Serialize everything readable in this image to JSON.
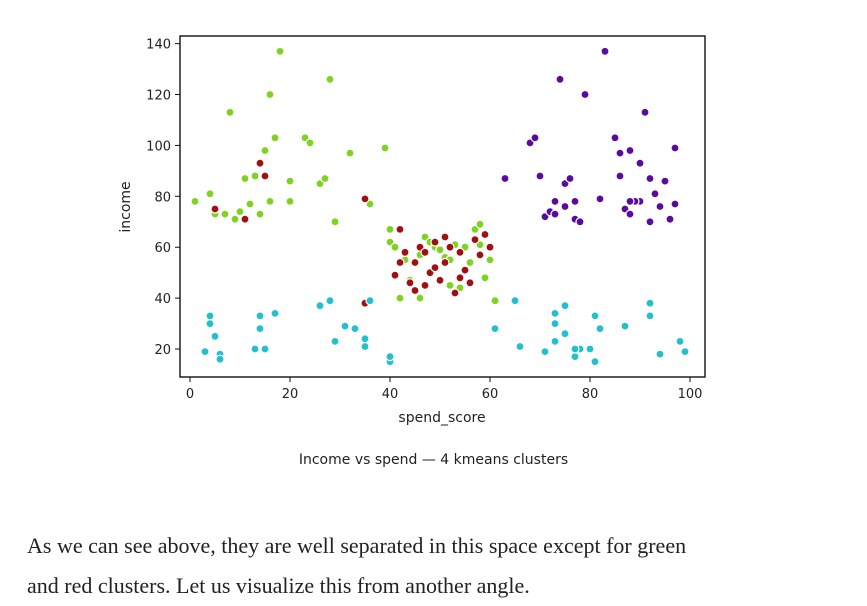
{
  "chart_data": {
    "type": "scatter",
    "xlabel": "spend_score",
    "ylabel": "income",
    "xlim": [
      -2,
      103
    ],
    "ylim": [
      9,
      143
    ],
    "x_ticks": [
      0,
      20,
      40,
      60,
      80,
      100
    ],
    "y_ticks": [
      20,
      40,
      60,
      80,
      100,
      120,
      140
    ],
    "grid": false,
    "legend": "none",
    "series": [
      {
        "color": "#7ed321",
        "points": [
          [
            1,
            78
          ],
          [
            4,
            81
          ],
          [
            5,
            73
          ],
          [
            7,
            73
          ],
          [
            8,
            113
          ],
          [
            9,
            71
          ],
          [
            10,
            74
          ],
          [
            11,
            87
          ],
          [
            12,
            77
          ],
          [
            13,
            88
          ],
          [
            15,
            98
          ],
          [
            16,
            120
          ],
          [
            17,
            103
          ],
          [
            18,
            137
          ],
          [
            20,
            86
          ],
          [
            20,
            78
          ],
          [
            23,
            103
          ],
          [
            24,
            101
          ],
          [
            26,
            85
          ],
          [
            27,
            87
          ],
          [
            28,
            126
          ],
          [
            29,
            70
          ],
          [
            32,
            97
          ],
          [
            36,
            77
          ],
          [
            39,
            99
          ],
          [
            40,
            67
          ],
          [
            40,
            62
          ],
          [
            41,
            60
          ],
          [
            42,
            40
          ],
          [
            43,
            55
          ],
          [
            44,
            47
          ],
          [
            46,
            40
          ],
          [
            46,
            57
          ],
          [
            47,
            64
          ],
          [
            48,
            62
          ],
          [
            49,
            60
          ],
          [
            50,
            59
          ],
          [
            51,
            56
          ],
          [
            52,
            55
          ],
          [
            52,
            45
          ],
          [
            53,
            61
          ],
          [
            54,
            44
          ],
          [
            55,
            60
          ],
          [
            56,
            54
          ],
          [
            57,
            67
          ],
          [
            58,
            61
          ],
          [
            58,
            69
          ],
          [
            59,
            48
          ],
          [
            60,
            55
          ],
          [
            61,
            39
          ],
          [
            16,
            78
          ],
          [
            14,
            73
          ]
        ]
      },
      {
        "color": "#a01010",
        "points": [
          [
            5,
            75
          ],
          [
            11,
            71
          ],
          [
            14,
            93
          ],
          [
            15,
            88
          ],
          [
            35,
            79
          ],
          [
            35,
            38
          ],
          [
            41,
            49
          ],
          [
            42,
            67
          ],
          [
            42,
            54
          ],
          [
            43,
            58
          ],
          [
            44,
            46
          ],
          [
            45,
            43
          ],
          [
            45,
            54
          ],
          [
            46,
            60
          ],
          [
            47,
            58
          ],
          [
            48,
            50
          ],
          [
            49,
            62
          ],
          [
            50,
            47
          ],
          [
            51,
            54
          ],
          [
            51,
            64
          ],
          [
            52,
            60
          ],
          [
            53,
            42
          ],
          [
            54,
            58
          ],
          [
            55,
            51
          ],
          [
            56,
            46
          ],
          [
            57,
            63
          ],
          [
            58,
            57
          ],
          [
            59,
            65
          ],
          [
            60,
            60
          ],
          [
            54,
            48
          ],
          [
            47,
            45
          ],
          [
            49,
            52
          ]
        ]
      },
      {
        "color": "#22bfcc",
        "points": [
          [
            3,
            19
          ],
          [
            4,
            33
          ],
          [
            4,
            30
          ],
          [
            5,
            25
          ],
          [
            6,
            18
          ],
          [
            6,
            16
          ],
          [
            13,
            20
          ],
          [
            14,
            33
          ],
          [
            14,
            28
          ],
          [
            15,
            20
          ],
          [
            17,
            34
          ],
          [
            26,
            37
          ],
          [
            28,
            39
          ],
          [
            29,
            23
          ],
          [
            31,
            29
          ],
          [
            33,
            28
          ],
          [
            35,
            24
          ],
          [
            35,
            21
          ],
          [
            36,
            39
          ],
          [
            40,
            15
          ],
          [
            40,
            17
          ],
          [
            61,
            28
          ],
          [
            65,
            39
          ],
          [
            66,
            21
          ],
          [
            71,
            19
          ],
          [
            73,
            34
          ],
          [
            73,
            30
          ],
          [
            75,
            26
          ],
          [
            75,
            37
          ],
          [
            77,
            17
          ],
          [
            78,
            20
          ],
          [
            80,
            20
          ],
          [
            81,
            15
          ],
          [
            81,
            33
          ],
          [
            82,
            28
          ],
          [
            87,
            29
          ],
          [
            92,
            38
          ],
          [
            92,
            33
          ],
          [
            94,
            18
          ],
          [
            98,
            23
          ],
          [
            99,
            19
          ],
          [
            73,
            23
          ],
          [
            77,
            20
          ]
        ]
      },
      {
        "color": "#5a0a9e",
        "points": [
          [
            63,
            87
          ],
          [
            68,
            101
          ],
          [
            69,
            103
          ],
          [
            70,
            88
          ],
          [
            71,
            72
          ],
          [
            72,
            74
          ],
          [
            73,
            78
          ],
          [
            73,
            73
          ],
          [
            74,
            126
          ],
          [
            75,
            76
          ],
          [
            75,
            85
          ],
          [
            76,
            87
          ],
          [
            77,
            78
          ],
          [
            77,
            71
          ],
          [
            78,
            70
          ],
          [
            79,
            120
          ],
          [
            82,
            79
          ],
          [
            83,
            137
          ],
          [
            85,
            103
          ],
          [
            86,
            97
          ],
          [
            86,
            88
          ],
          [
            87,
            75
          ],
          [
            88,
            73
          ],
          [
            88,
            98
          ],
          [
            89,
            78
          ],
          [
            90,
            78
          ],
          [
            90,
            93
          ],
          [
            91,
            113
          ],
          [
            92,
            70
          ],
          [
            92,
            87
          ],
          [
            93,
            81
          ],
          [
            94,
            76
          ],
          [
            95,
            86
          ],
          [
            96,
            71
          ],
          [
            97,
            99
          ],
          [
            97,
            77
          ],
          [
            89,
            78
          ],
          [
            88,
            78
          ]
        ]
      }
    ]
  },
  "caption": "Income vs spend — 4 kmeans clusters",
  "paragraph": {
    "line1": "As we can see above, they are well separated in this space except for green",
    "line2": "and red clusters. Let us visualize this from another angle."
  }
}
